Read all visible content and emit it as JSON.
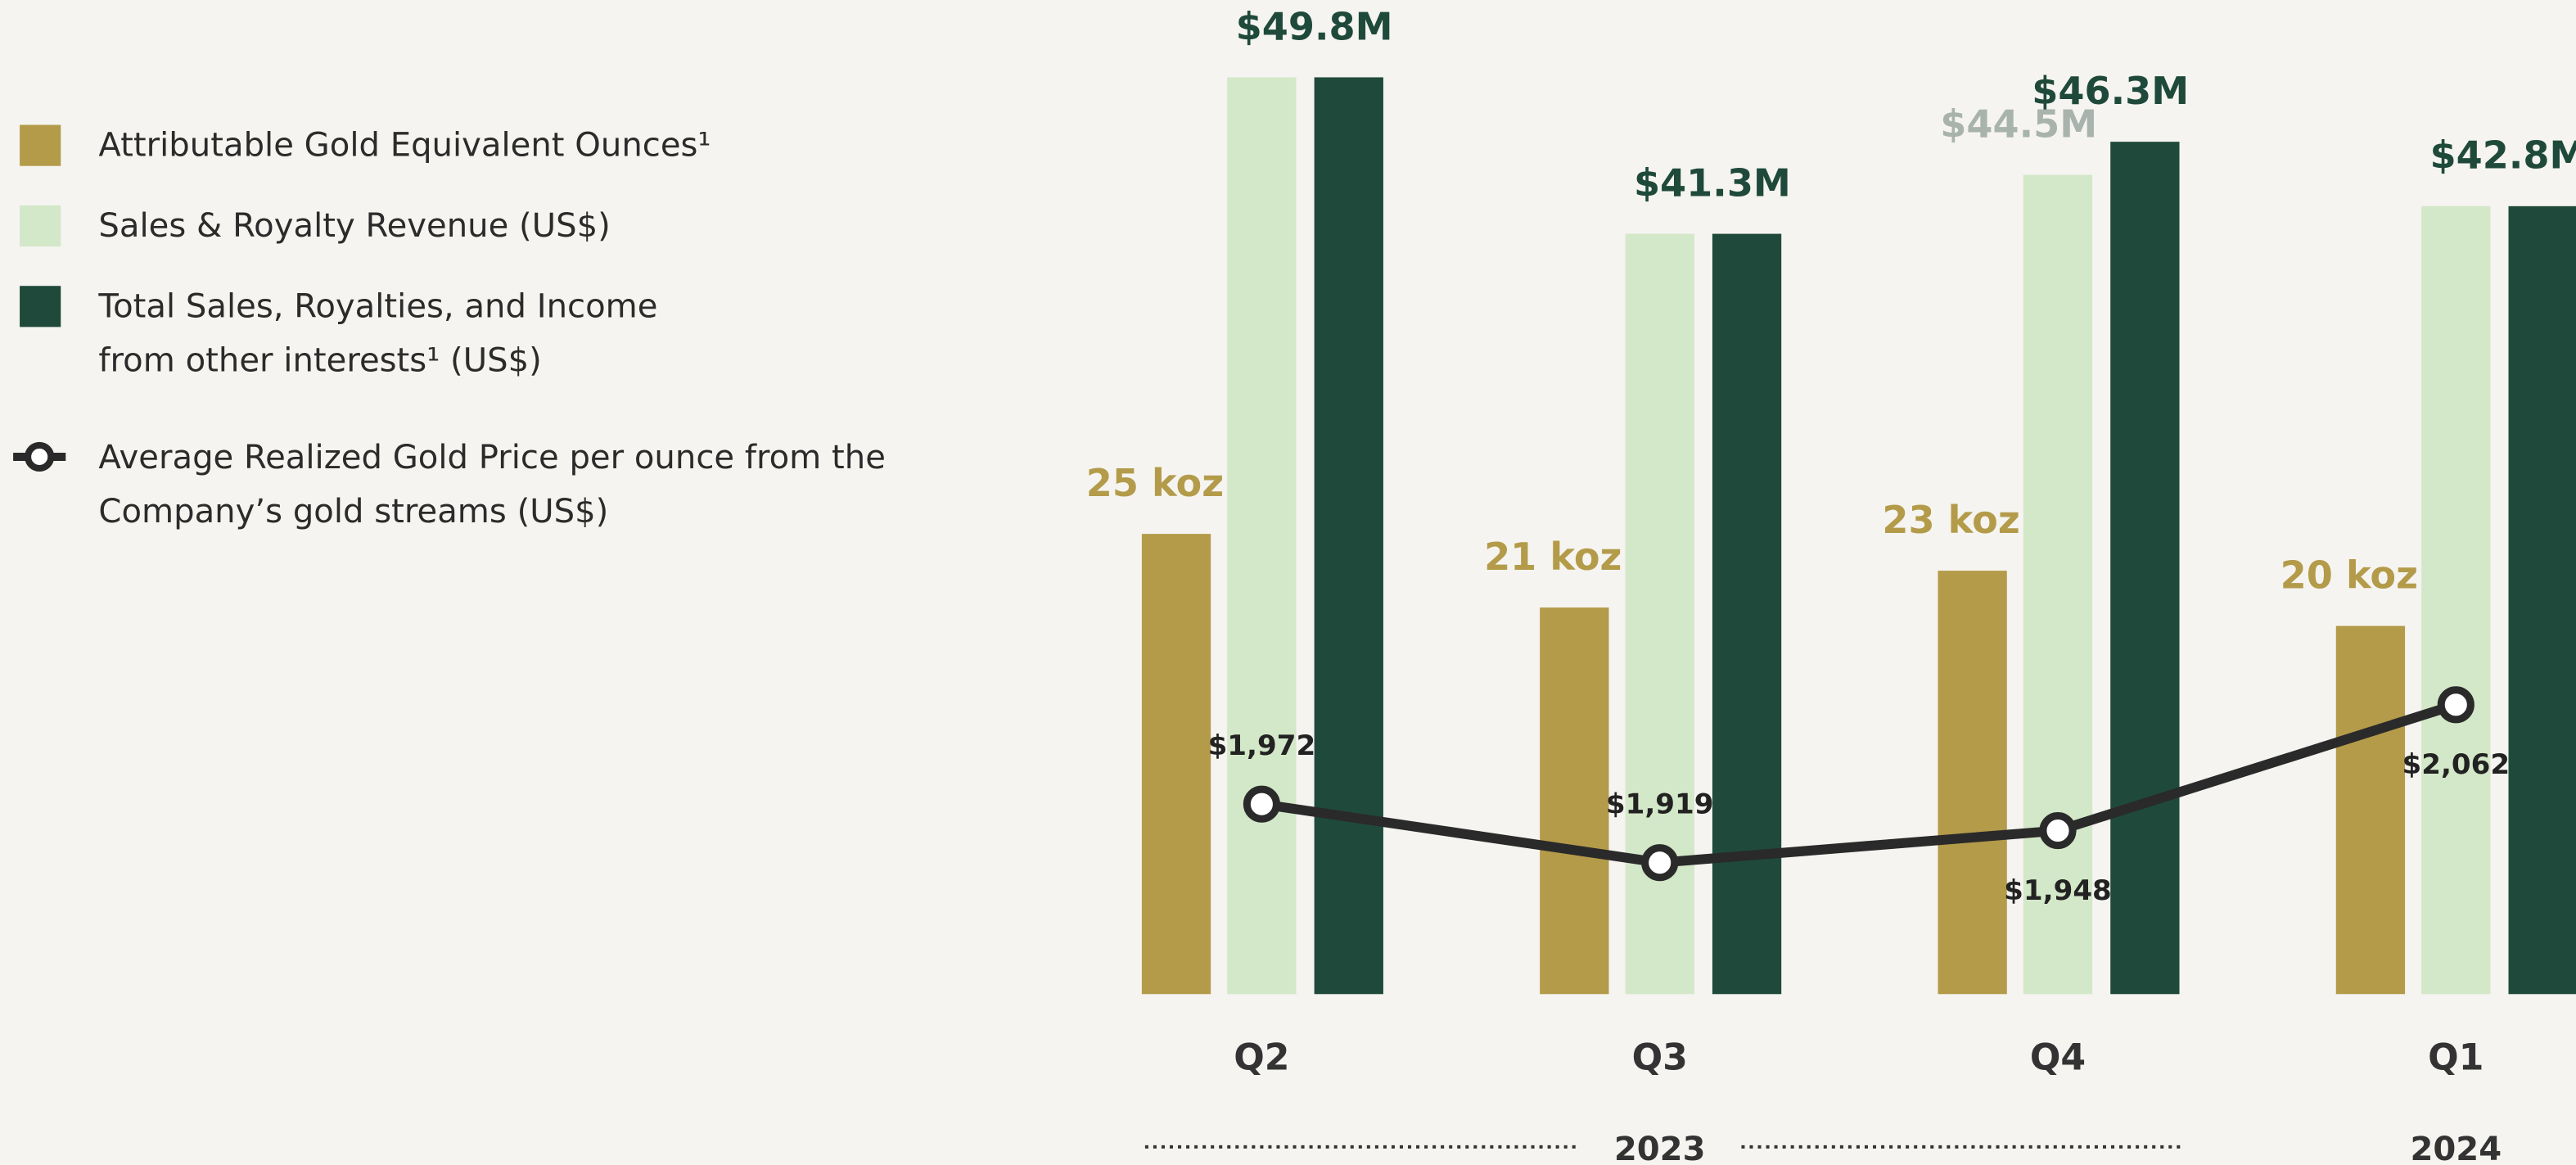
{
  "chart_data": {
    "type": "bar",
    "categories": [
      "Q2",
      "Q3",
      "Q4",
      "Q1"
    ],
    "years": [
      {
        "label": "2023",
        "category": 1
      },
      {
        "label": "2024",
        "category": 3
      }
    ],
    "ylim": [
      0,
      54
    ],
    "y2lim": [
      1800,
      2700
    ],
    "series": [
      {
        "name": "Attributable Gold Equivalent Ounces¹",
        "color": "#b39b4a",
        "values": [
          25,
          21,
          23,
          20
        ],
        "value_labels": [
          "25 koz",
          "21 koz",
          "23 koz",
          "20 koz"
        ],
        "label_color": "#b39b4a"
      },
      {
        "name": "Sales & Royalty Revenue (US$)",
        "color": "#d3e8c8",
        "values": [
          49.8,
          41.3,
          44.5,
          42.8
        ],
        "value_labels": [
          null,
          null,
          "$44.5M",
          null
        ],
        "label_color": "#a9b3ad"
      },
      {
        "name": "Total Sales, Royalties, and Income from other interests¹ (US$)",
        "color": "#1f4a3b",
        "values": [
          49.8,
          41.3,
          46.3,
          42.8
        ],
        "value_labels": [
          "$49.8M",
          "$41.3M",
          "$46.3M",
          "$42.8M"
        ],
        "label_color": "#1f4a3b"
      },
      {
        "name": "Average Realized Gold Price per ounce from the Company’s gold streams (US$)",
        "type": "line",
        "axis": "y2",
        "color": "#2a2a2a",
        "values": [
          1972,
          1919,
          1948,
          2062
        ],
        "value_labels": [
          "$1,972",
          "$1,919",
          "$1,948",
          "$2,062"
        ],
        "label_position": [
          "above",
          "above",
          "below",
          "below"
        ]
      }
    ]
  }
}
